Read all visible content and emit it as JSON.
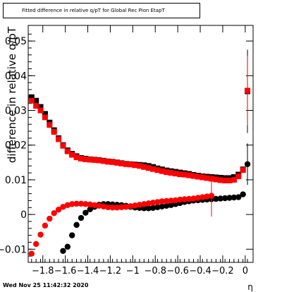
{
  "title_box": {
    "text": "Fitted difference in relative q/pT for Global Rec Pion EtapT"
  },
  "timestamp": "Wed Nov 25 11:42:32 2020",
  "chart_data": {
    "type": "scatter",
    "xlabel": "η",
    "ylabel": "difference in relative q/pT",
    "xlim": [
      -1.93,
      0.07
    ],
    "ylim": [
      -0.0138,
      0.0545
    ],
    "xticks": [
      {
        "value": -1.8,
        "label": "−1.8"
      },
      {
        "value": -1.6,
        "label": "−1.6"
      },
      {
        "value": -1.4,
        "label": "−1.4"
      },
      {
        "value": -1.2,
        "label": "−1.2"
      },
      {
        "value": -1.0,
        "label": "−1"
      },
      {
        "value": -0.8,
        "label": "−0.8"
      },
      {
        "value": -0.6,
        "label": "−0.6"
      },
      {
        "value": -0.4,
        "label": "−0.4"
      },
      {
        "value": -0.2,
        "label": "−0.2"
      },
      {
        "value": 0.0,
        "label": "0"
      }
    ],
    "yticks": [
      {
        "value": -0.01,
        "label": "−0.01"
      },
      {
        "value": 0.0,
        "label": "0"
      },
      {
        "value": 0.01,
        "label": "0.01"
      },
      {
        "value": 0.02,
        "label": "0.02"
      },
      {
        "value": 0.03,
        "label": "0.03"
      },
      {
        "value": 0.04,
        "label": "0.04"
      },
      {
        "value": 0.05,
        "label": "0.05"
      }
    ],
    "x": [
      -1.9,
      -1.86,
      -1.82,
      -1.78,
      -1.74,
      -1.7,
      -1.66,
      -1.62,
      -1.58,
      -1.54,
      -1.5,
      -1.46,
      -1.42,
      -1.38,
      -1.34,
      -1.3,
      -1.26,
      -1.22,
      -1.18,
      -1.14,
      -1.1,
      -1.06,
      -1.02,
      -0.98,
      -0.94,
      -0.9,
      -0.86,
      -0.82,
      -0.78,
      -0.74,
      -0.7,
      -0.66,
      -0.62,
      -0.58,
      -0.54,
      -0.5,
      -0.46,
      -0.42,
      -0.38,
      -0.34,
      -0.3,
      -0.26,
      -0.22,
      -0.18,
      -0.14,
      -0.1,
      -0.06,
      -0.02,
      0.02
    ],
    "series": [
      {
        "color": "#000000",
        "marker": "square",
        "values": [
          0.0338,
          0.0328,
          0.031,
          0.029,
          0.0265,
          0.0243,
          0.022,
          0.02,
          0.0185,
          0.0175,
          0.0168,
          0.0163,
          0.0161,
          0.0159,
          0.0158,
          0.0157,
          0.0155,
          0.0153,
          0.0152,
          0.015,
          0.0148,
          0.0146,
          0.0145,
          0.0144,
          0.0143,
          0.0142,
          0.014,
          0.0137,
          0.0133,
          0.013,
          0.0127,
          0.0125,
          0.0123,
          0.0121,
          0.0119,
          0.0117,
          0.0114,
          0.0112,
          0.011,
          0.0109,
          0.0108,
          0.0107,
          0.0106,
          0.0105,
          0.0105,
          0.0108,
          0.0115,
          0.013,
          0.0355
        ],
        "errors": [
          0.0008,
          0.0005,
          0.0004,
          0.0003,
          0.0003,
          0.0002,
          0.0002,
          0.0002,
          0.0002,
          0.0002,
          0.0002,
          0.0002,
          0.0002,
          0.0002,
          0.0002,
          0.0002,
          0.0002,
          0.0002,
          0.0002,
          0.0002,
          0.0002,
          0.0002,
          0.0002,
          0.0002,
          0.0002,
          0.0002,
          0.0002,
          0.0002,
          0.0002,
          0.0002,
          0.0002,
          0.0002,
          0.0002,
          0.0002,
          0.0002,
          0.0002,
          0.0002,
          0.0002,
          0.0002,
          0.0002,
          0.0002,
          0.0002,
          0.0002,
          0.0002,
          0.0002,
          0.0003,
          0.0004,
          0.0006,
          0.012
        ]
      },
      {
        "color": "#ff0000",
        "marker": "square",
        "values": [
          0.0328,
          0.0313,
          0.03,
          0.028,
          0.0258,
          0.0238,
          0.0217,
          0.0198,
          0.0182,
          0.0172,
          0.0165,
          0.0161,
          0.0159,
          0.0158,
          0.0157,
          0.0156,
          0.0154,
          0.0152,
          0.0151,
          0.0149,
          0.0147,
          0.0145,
          0.0144,
          0.0142,
          0.014,
          0.0137,
          0.0134,
          0.0131,
          0.0128,
          0.0125,
          0.0122,
          0.012,
          0.0118,
          0.0116,
          0.0115,
          0.0113,
          0.0111,
          0.0109,
          0.0107,
          0.0105,
          0.0103,
          0.0101,
          0.0099,
          0.0098,
          0.0098,
          0.01,
          0.011,
          0.0128,
          0.0357
        ],
        "errors": [
          0.0008,
          0.0005,
          0.0004,
          0.0003,
          0.0003,
          0.0002,
          0.0002,
          0.0002,
          0.0002,
          0.0002,
          0.0002,
          0.0002,
          0.0002,
          0.0002,
          0.0002,
          0.0002,
          0.0002,
          0.0002,
          0.0002,
          0.0002,
          0.0002,
          0.0002,
          0.0002,
          0.0002,
          0.0002,
          0.0002,
          0.0002,
          0.0002,
          0.0002,
          0.0002,
          0.0002,
          0.0002,
          0.0002,
          0.0002,
          0.0002,
          0.0002,
          0.0002,
          0.0002,
          0.0002,
          0.0002,
          0.0002,
          0.0002,
          0.0002,
          0.0002,
          0.0002,
          0.0003,
          0.0004,
          0.0006,
          0.01
        ]
      },
      {
        "color": "#000000",
        "marker": "circle",
        "values": [
          -0.0105,
          -0.0093,
          -0.006,
          -0.003,
          -0.001,
          0.0005,
          0.0015,
          0.0022,
          0.0028,
          0.003,
          0.003,
          0.0029,
          0.0028,
          0.0027,
          0.0025,
          0.0022,
          0.002,
          0.0019,
          0.0018,
          0.0018,
          0.0019,
          0.0021,
          0.0023,
          0.0025,
          0.0027,
          0.003,
          0.0033,
          0.0036,
          0.0038,
          0.004,
          0.0041,
          0.0042,
          0.0043,
          0.0044,
          0.0045,
          0.0046,
          0.0047,
          0.0048,
          0.0049,
          0.005,
          0.0058,
          0.0145
        ],
        "x_start_index": 7,
        "errors": [
          0.0006,
          0.0005,
          0.0004,
          0.0003,
          0.0003,
          0.0002,
          0.0002,
          0.0002,
          0.0002,
          0.0002,
          0.0002,
          0.0002,
          0.0002,
          0.0002,
          0.0002,
          0.0002,
          0.0002,
          0.0002,
          0.0002,
          0.0002,
          0.0002,
          0.0002,
          0.0002,
          0.0002,
          0.0002,
          0.0002,
          0.0002,
          0.0002,
          0.0002,
          0.0002,
          0.0002,
          0.0002,
          0.0002,
          0.0002,
          0.0002,
          0.0002,
          0.0002,
          0.0002,
          0.0002,
          0.0003,
          0.0005,
          0.006
        ]
      },
      {
        "color": "#ff0000",
        "marker": "circle",
        "values": [
          -0.0113,
          -0.0085,
          -0.0058,
          -0.0032,
          -0.0012,
          0.0004,
          0.0014,
          0.0022,
          0.0027,
          0.003,
          0.0031,
          0.0031,
          0.003,
          0.0029,
          0.0027,
          0.0025,
          0.0023,
          0.0021,
          0.002,
          0.002,
          0.0021,
          0.0022,
          0.0024,
          0.0026,
          0.0028,
          0.003,
          0.0032,
          0.0034,
          0.0036,
          0.0038,
          0.0039,
          0.004,
          0.0041,
          0.0043,
          0.0044,
          0.0045,
          0.0046,
          0.0048,
          0.005,
          0.0052,
          0.0054
        ],
        "x_start_index": 0,
        "errors": [
          0.0006,
          0.0005,
          0.0004,
          0.0003,
          0.0003,
          0.0002,
          0.0002,
          0.0002,
          0.0002,
          0.0002,
          0.0002,
          0.0002,
          0.0002,
          0.0002,
          0.0002,
          0.0002,
          0.0002,
          0.0002,
          0.0002,
          0.0002,
          0.0002,
          0.0002,
          0.0002,
          0.0002,
          0.0002,
          0.0002,
          0.0002,
          0.0002,
          0.0002,
          0.0002,
          0.0002,
          0.0002,
          0.0002,
          0.0002,
          0.0002,
          0.0002,
          0.0002,
          0.0002,
          0.0002,
          0.0003,
          0.006
        ]
      }
    ]
  }
}
